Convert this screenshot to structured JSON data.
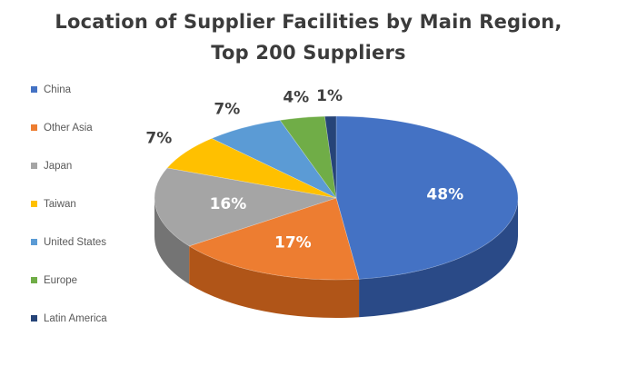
{
  "chart_data": {
    "type": "pie",
    "style": "3d",
    "title": "Location of Supplier Facilities by Main Region,",
    "subtitle": "Top 200 Suppliers",
    "legend_position": "left",
    "slices": [
      {
        "label": "China",
        "value": 48,
        "display": "48%",
        "color": "#4472C4",
        "side_color": "#2a4a87"
      },
      {
        "label": "Other Asia",
        "value": 17,
        "display": "17%",
        "color": "#ED7D31",
        "side_color": "#b05518"
      },
      {
        "label": "Japan",
        "value": 16,
        "display": "16%",
        "color": "#A5A5A5",
        "side_color": "#747474"
      },
      {
        "label": "Taiwan",
        "value": 7,
        "display": "7%",
        "color": "#FFC000",
        "side_color": "#bf8f00"
      },
      {
        "label": "United States",
        "value": 7,
        "display": "7%",
        "color": "#5B9BD5",
        "side_color": "#3a6f9f"
      },
      {
        "label": "Europe",
        "value": 4,
        "display": "4%",
        "color": "#70AD47",
        "side_color": "#4e7f30"
      },
      {
        "label": "Latin America",
        "value": 1,
        "display": "1%",
        "color": "#264478",
        "side_color": "#172c50"
      }
    ]
  }
}
